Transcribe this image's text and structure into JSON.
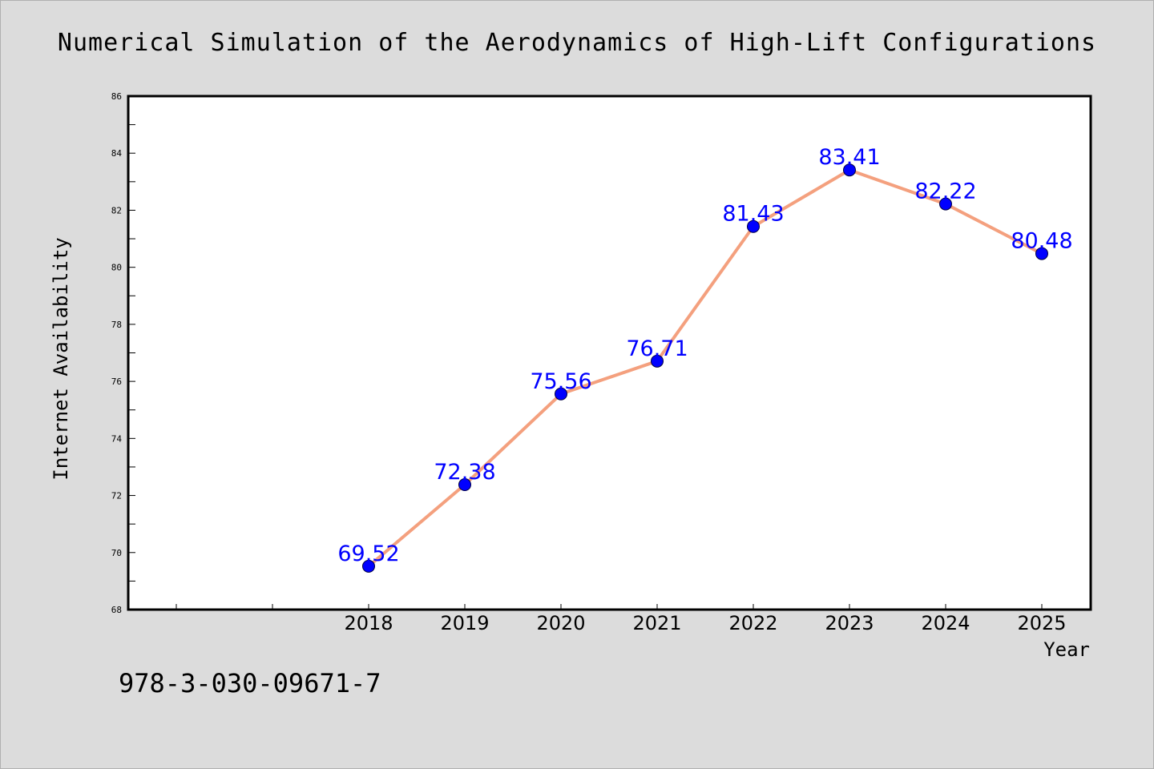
{
  "footer": {
    "isbn": "978-3-030-09671-7"
  },
  "colors": {
    "line": "#f4a07e",
    "marker": "#0000ff",
    "labels": "#0000ff",
    "background": "#dcdcdc",
    "plot_area": "#ffffff"
  },
  "chart_data": {
    "type": "line",
    "title": "Numerical Simulation of the Aerodynamics of High-Lift Configurations",
    "xlabel": "Year",
    "ylabel": "Internet Availability",
    "categories": [
      "2018",
      "2019",
      "2020",
      "2021",
      "2022",
      "2023",
      "2024",
      "2025"
    ],
    "series": [
      {
        "values": [
          69.52,
          72.38,
          75.56,
          76.71,
          81.43,
          83.41,
          82.22,
          80.48
        ]
      }
    ],
    "ylim": [
      68,
      86
    ],
    "yticks": [
      68,
      70,
      72,
      74,
      76,
      78,
      80,
      82,
      84,
      86
    ],
    "grid": false,
    "legend": "none",
    "data_labels": true
  }
}
